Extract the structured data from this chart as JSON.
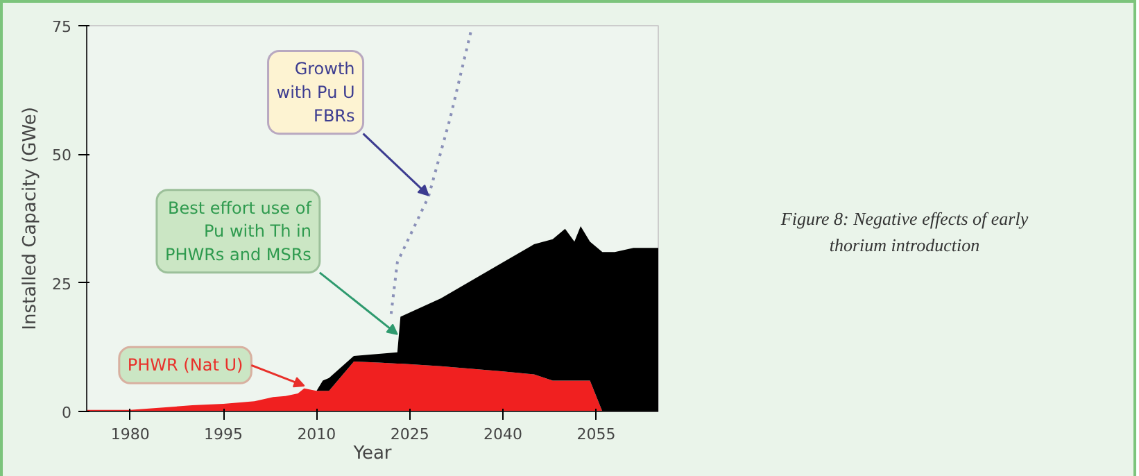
{
  "chart_data": {
    "type": "area",
    "stacked": true,
    "xlabel": "Year",
    "ylabel": "Installed Capacity (GWe)",
    "x": [
      1973,
      1980,
      1990,
      1995,
      2000,
      2003,
      2005,
      2007,
      2008,
      2010,
      2011,
      2012,
      2016,
      2020,
      2023,
      2023.5,
      2030,
      2040,
      2045,
      2048,
      2050,
      2051.5,
      2052.5,
      2054,
      2056,
      2058,
      2061,
      2065
    ],
    "series": [
      {
        "color": "#f02020",
        "values": [
          0.3,
          0.3,
          1.2,
          1.5,
          2,
          2.8,
          3,
          3.5,
          4.5,
          4,
          4,
          4,
          9.7,
          9.5,
          9.3,
          9.3,
          8.8,
          7.8,
          7.2,
          6,
          6,
          6,
          6,
          6,
          0,
          0,
          0,
          0
        ]
      },
      {
        "color": "#000000",
        "values": [
          0,
          0,
          0,
          0,
          0,
          0,
          0,
          0,
          0,
          0,
          2,
          2.5,
          1.1,
          1.7,
          2.2,
          9.1,
          13.2,
          21.2,
          25.3,
          27.5,
          29.5,
          27,
          30,
          27,
          31,
          31,
          31.8,
          31.8
        ]
      },
      {
        "type": "line",
        "color": "#8a90b8",
        "line_style": "dotted",
        "x": [
          2022,
          2023,
          2028,
          2031.5,
          2035
        ],
        "values": [
          19,
          29,
          41.7,
          57,
          74.7
        ]
      }
    ],
    "xlim": [
      1973,
      2065
    ],
    "ylim": [
      0,
      75
    ],
    "xticks": [
      1980,
      1995,
      2010,
      2025,
      2040,
      2055
    ],
    "yticks": [
      0,
      25,
      50,
      75
    ],
    "annotations": [
      {
        "text": "Growth\nwith Pu U\nFBRs",
        "x": 2028,
        "y": 42
      },
      {
        "text": "Best effort use of\nPu with Th in\nPHWRs and MSRs",
        "x": 2023,
        "y": 15
      },
      {
        "text": "PHWR (Nat U)",
        "x": 2008,
        "y": 5
      },
      "Figure 8: Negative effects of early\nthorium introduction"
    ]
  }
}
